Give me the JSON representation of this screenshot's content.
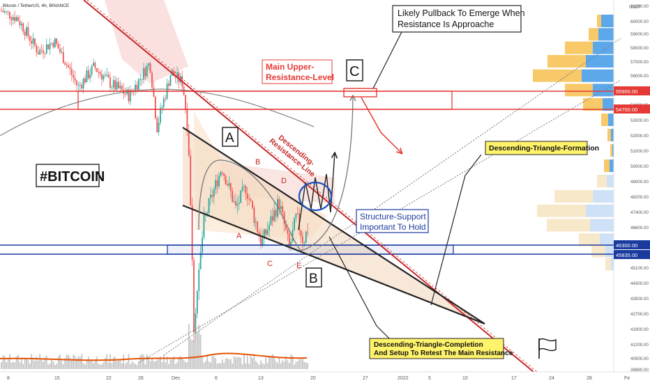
{
  "header": {
    "symbol": "Bitcoin / TetherUS, 4h, BINANCE"
  },
  "colors": {
    "up": "#26a69a",
    "down": "#ef5350",
    "resistance": "#e53935",
    "support": "#1a3a9e",
    "triangle": "#222222",
    "ma": "#8a8a8a",
    "volume_ma": "#e65100",
    "note_bg": "#fff36b"
  },
  "annotations": {
    "ticker": "#BITCOIN",
    "pullback_note": [
      "Likely Pullback To Emerge When",
      "Resistance Is Approache"
    ],
    "main_resistance": [
      "Main Upper-",
      "Resistance-Level"
    ],
    "descending_resistance": [
      "Descending-",
      "Resistance-Line"
    ],
    "structure_support": [
      "Structure-Support",
      "Important To Hold"
    ],
    "triangle_formation": "Descending-Triangle-Formation",
    "triangle_completion": [
      "Descending-Triangle-Completion",
      "And Setup To Retest The Main Resistance"
    ],
    "wave_points": [
      "A",
      "B",
      "C",
      "D",
      "E"
    ],
    "big_labels": [
      "A",
      "B",
      "C"
    ]
  },
  "price_labels": [
    "55900.00",
    "54700.00",
    "46300.00",
    "45835.00"
  ],
  "chart_data": {
    "type": "candlestick",
    "title": "Bitcoin / TetherUS, 4h, BINANCE",
    "currency": "USDT",
    "x_ticks": [
      "8",
      "15",
      "22",
      "26",
      "Dec",
      "6",
      "13",
      "20",
      "27",
      "2022",
      "5",
      "10",
      "17",
      "24",
      "28",
      "Fe"
    ],
    "y_ticks": [
      "61000.00",
      "60000.00",
      "59000.00",
      "58000.00",
      "57000.00",
      "56000.00",
      "55000.00",
      "54000.00",
      "53000.00",
      "52000.00",
      "51000.00",
      "50000.00",
      "49000.00",
      "48200.00",
      "47400.00",
      "46600.00",
      "45100.00",
      "44300.00",
      "43500.00",
      "42700.00",
      "41900.00",
      "41200.00",
      "40500.00",
      "39860.00"
    ],
    "levels": [
      {
        "name": "Main Upper-Resistance-Level",
        "low": 54700,
        "high": 55900
      },
      {
        "name": "Structure-Support",
        "low": 45835,
        "high": 46300
      }
    ],
    "price_path": [
      {
        "t": "Nov 5",
        "p": 61800
      },
      {
        "t": "Nov 8",
        "p": 61200
      },
      {
        "t": "Nov 10",
        "p": 58700
      },
      {
        "t": "Nov 12",
        "p": 59500
      },
      {
        "t": "Nov 15",
        "p": 56200
      },
      {
        "t": "Nov 17",
        "p": 57600
      },
      {
        "t": "Nov 19",
        "p": 56400
      },
      {
        "t": "Nov 22",
        "p": 55600
      },
      {
        "t": "Nov 25",
        "p": 57900
      },
      {
        "t": "Nov 26",
        "p": 53500
      },
      {
        "t": "Nov 29",
        "p": 57200
      },
      {
        "t": "Dec 2",
        "p": 56500
      },
      {
        "t": "Dec 3",
        "p": 53000
      },
      {
        "t": "Dec 4",
        "p": 42000
      },
      {
        "t": "Dec 5",
        "p": 47500
      },
      {
        "t": "Dec 7",
        "p": 50900
      },
      {
        "t": "Dec 9",
        "p": 48300
      },
      {
        "t": "Dec 11",
        "p": 49600
      },
      {
        "t": "Dec 13",
        "p": 46400
      },
      {
        "t": "Dec 15",
        "p": 48700
      },
      {
        "t": "Dec 17",
        "p": 46100
      },
      {
        "t": "Dec 18",
        "p": 47900
      },
      {
        "t": "Dec 19",
        "p": 46500
      },
      {
        "t": "Dec 20",
        "p": 47300
      }
    ]
  }
}
